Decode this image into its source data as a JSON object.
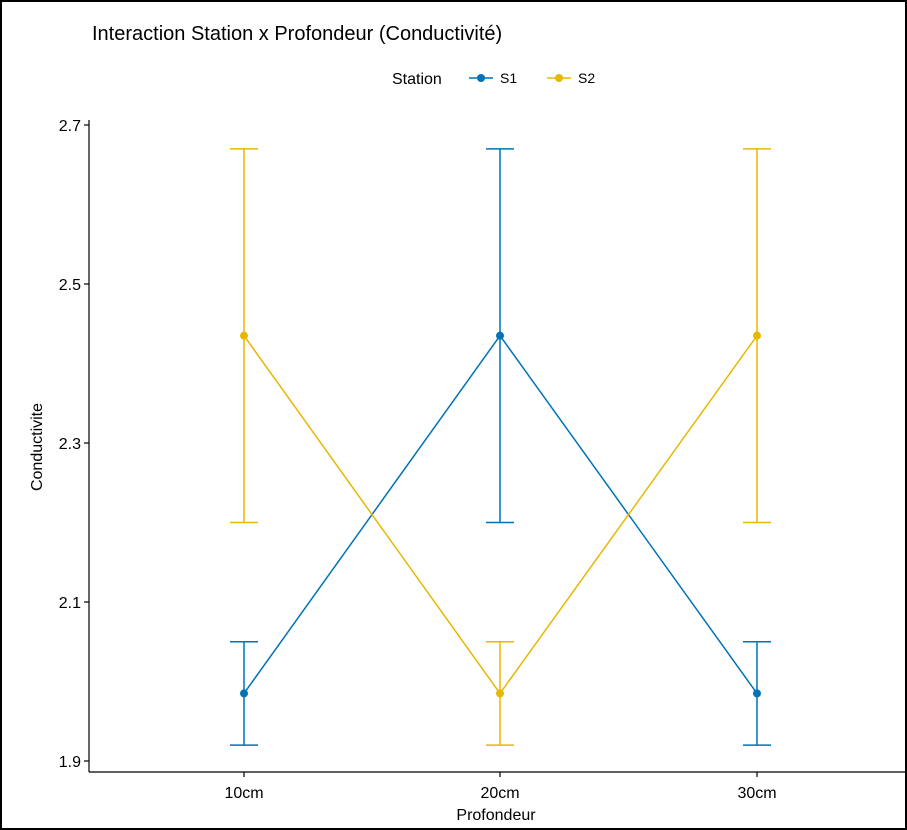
{
  "chart_data": {
    "type": "line",
    "title": "Interaction Station x Profondeur (Conductivité)",
    "xlabel": "Profondeur",
    "ylabel": "Conductivite",
    "categories": [
      "10cm",
      "20cm",
      "30cm"
    ],
    "ylim": [
      1.9,
      2.7
    ],
    "yticks": [
      "1.9",
      "2.1",
      "2.3",
      "2.5",
      "2.7"
    ],
    "legend": {
      "title": "Station",
      "placement": "top"
    },
    "series": [
      {
        "name": "S1",
        "color": "#0072b5",
        "values": [
          1.985,
          2.435,
          1.985
        ],
        "error_low": [
          1.92,
          2.2,
          1.92
        ],
        "error_high": [
          2.05,
          2.67,
          2.05
        ]
      },
      {
        "name": "S2",
        "color": "#e7b800",
        "values": [
          2.435,
          1.985,
          2.435
        ],
        "error_low": [
          2.2,
          1.92,
          2.2
        ],
        "error_high": [
          2.67,
          2.05,
          2.67
        ]
      }
    ],
    "grid": false
  }
}
